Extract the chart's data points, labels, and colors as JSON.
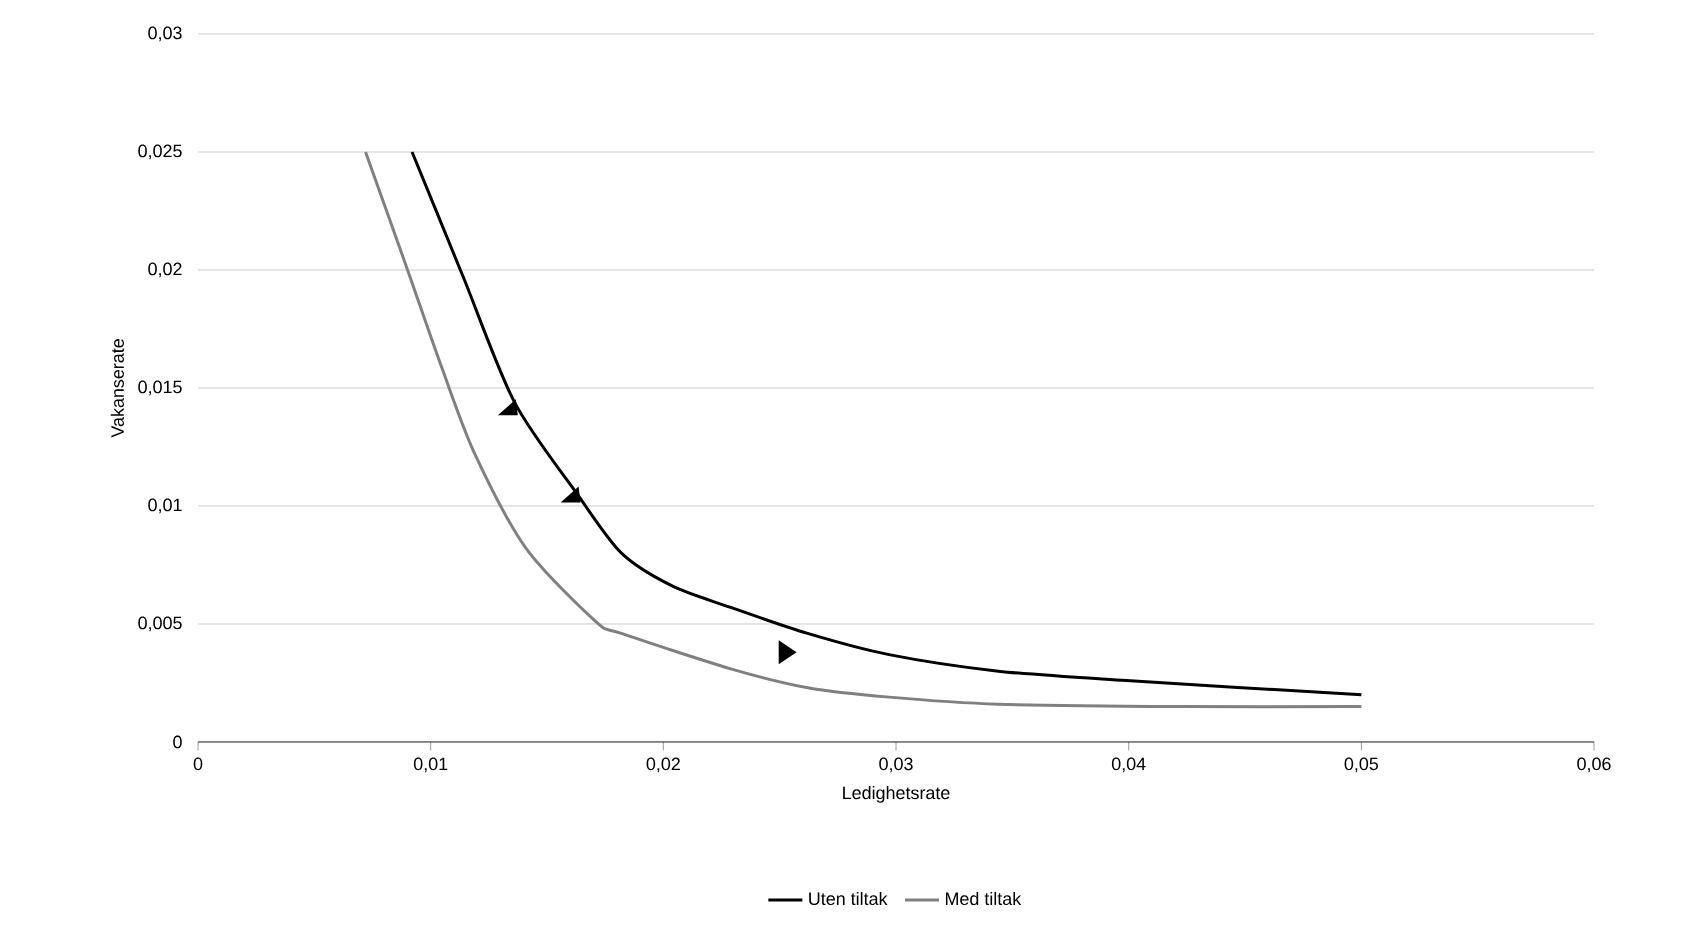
{
  "chart_data": {
    "type": "line",
    "xlabel": "Ledighetsrate",
    "ylabel": "Vakanserate",
    "xlim": [
      0,
      0.06
    ],
    "xticks": [
      {
        "value": 0,
        "label": "0"
      },
      {
        "value": 0.01,
        "label": "0,01"
      },
      {
        "value": 0.02,
        "label": "0,02"
      },
      {
        "value": 0.03,
        "label": "0,03"
      },
      {
        "value": 0.04,
        "label": "0,04"
      },
      {
        "value": 0.05,
        "label": "0,05"
      },
      {
        "value": 0.06,
        "label": "0,06"
      }
    ],
    "ylim": [
      0,
      0.03
    ],
    "yticks": [
      {
        "value": 0,
        "label": "0"
      },
      {
        "value": 0.005,
        "label": "0,005"
      },
      {
        "value": 0.01,
        "label": "0,01"
      },
      {
        "value": 0.015,
        "label": "0,015"
      },
      {
        "value": 0.02,
        "label": "0,02"
      },
      {
        "value": 0.025,
        "label": "0,025"
      },
      {
        "value": 0.03,
        "label": "0,03"
      }
    ],
    "grid": "y",
    "legend": "bottom",
    "marker": "none",
    "line_style": "solid",
    "series": [
      {
        "name": "Uten tiltak",
        "color": "#000000",
        "x": [
          0.0092,
          0.0114,
          0.0136,
          0.0163,
          0.0182,
          0.0204,
          0.0229,
          0.0262,
          0.0297,
          0.0344,
          0.0399,
          0.05
        ],
        "values": [
          0.025,
          0.0197,
          0.0144,
          0.0105,
          0.008,
          0.0066,
          0.0057,
          0.0046,
          0.0037,
          0.003,
          0.0026,
          0.002
        ]
      },
      {
        "name": "Med tiltak",
        "color": "#808080",
        "x": [
          0.0072,
          0.0089,
          0.0105,
          0.0119,
          0.0141,
          0.0171,
          0.0182,
          0.0229,
          0.0262,
          0.0297,
          0.0344,
          0.0421,
          0.05
        ],
        "values": [
          0.025,
          0.0203,
          0.0158,
          0.0122,
          0.0082,
          0.0051,
          0.0046,
          0.0031,
          0.0023,
          0.0019,
          0.0016,
          0.0015,
          0.0015
        ]
      }
    ]
  }
}
